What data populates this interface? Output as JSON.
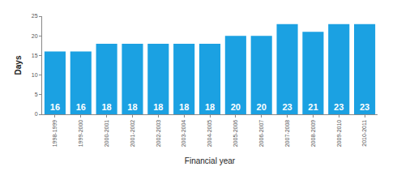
{
  "chart_data": {
    "type": "bar",
    "x_label": "Financial year",
    "y_label": "Days",
    "categories": [
      "1998-1999",
      "1999-2000",
      "2000-2001",
      "2001-2002",
      "2002-2003",
      "2003-2004",
      "2004-2005",
      "2005-2006",
      "2006-2007",
      "2007-2008",
      "2008-2009",
      "2009-2010",
      "2010-2011"
    ],
    "values": [
      16,
      16,
      18,
      18,
      18,
      18,
      18,
      20,
      20,
      23,
      21,
      23,
      23
    ],
    "color": "#1ba1e2",
    "ylim": [
      0,
      25
    ],
    "yticks": [
      0,
      5,
      10,
      15,
      20,
      25
    ],
    "grid": false,
    "data_labels": true
  }
}
